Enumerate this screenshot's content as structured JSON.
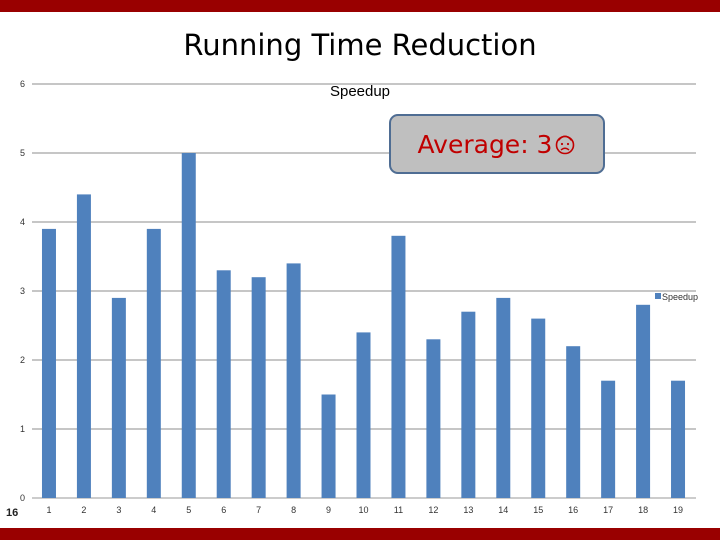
{
  "slide": {
    "title": "Running Time Reduction",
    "number": "16"
  },
  "callout": {
    "text": "Average: 3",
    "icon": "frowning-face-icon"
  },
  "colors": {
    "accent_bar": "#990000",
    "series": "#4f81bd",
    "callout_text": "#c00000",
    "callout_fill": "#bfbfbf",
    "callout_border": "#4f6d93"
  },
  "chart_data": {
    "type": "bar",
    "title": "Speedup",
    "categories": [
      "1",
      "2",
      "3",
      "4",
      "5",
      "6",
      "7",
      "8",
      "9",
      "10",
      "11",
      "12",
      "13",
      "14",
      "15",
      "16",
      "17",
      "18",
      "19"
    ],
    "series": [
      {
        "name": "Speedup",
        "values": [
          3.9,
          4.4,
          2.9,
          3.9,
          5.0,
          3.3,
          3.2,
          3.4,
          1.5,
          2.4,
          3.8,
          2.3,
          2.7,
          2.9,
          2.6,
          2.2,
          1.7,
          2.8,
          1.7
        ]
      }
    ],
    "ylim": [
      0,
      6
    ],
    "yticks": [
      "0",
      "1",
      "2",
      "3",
      "4",
      "5",
      "6"
    ],
    "grid": true,
    "legend": "right"
  }
}
